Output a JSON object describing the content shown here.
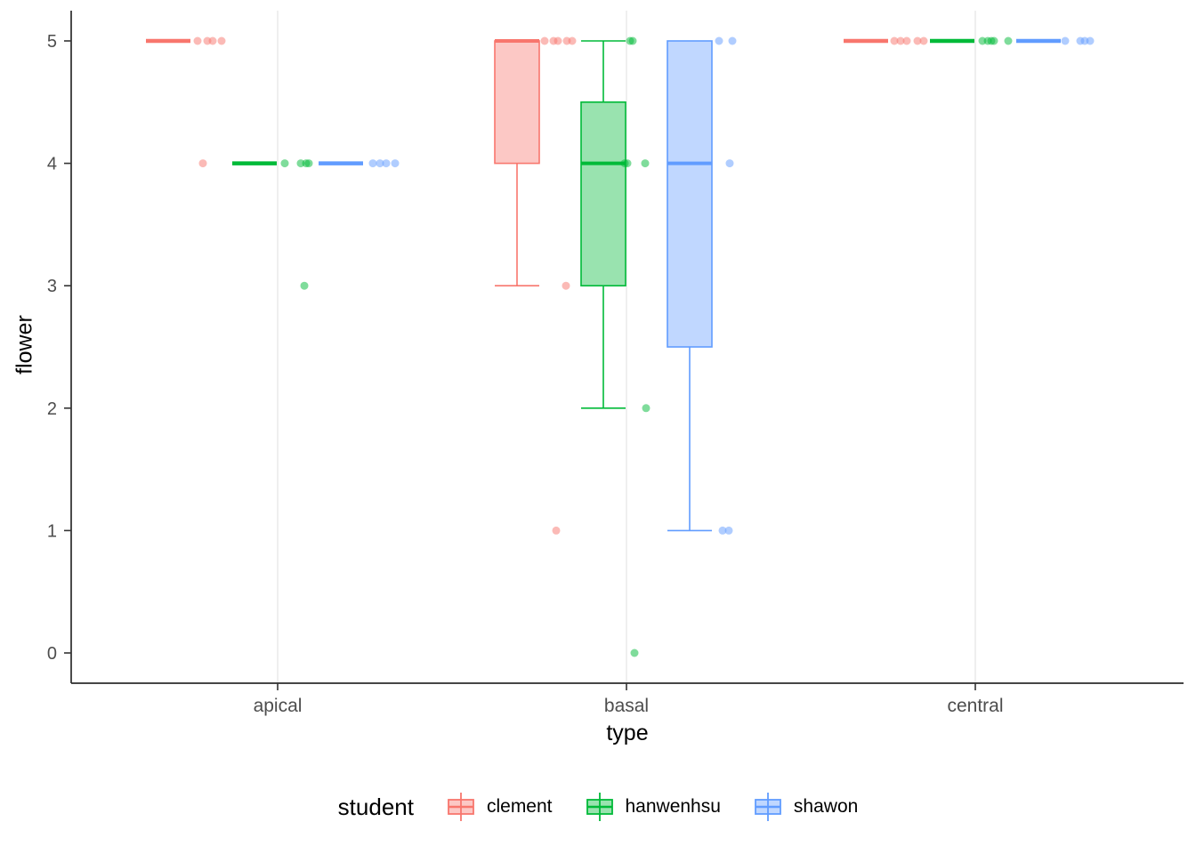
{
  "chart_data": {
    "type": "boxplot",
    "title": "",
    "xlabel": "type",
    "ylabel": "flower",
    "legend_title": "student",
    "categories": [
      "apical",
      "basal",
      "central"
    ],
    "groups": [
      {
        "name": "clement",
        "color": "#F8766D"
      },
      {
        "name": "hanwenhsu",
        "color": "#00BA38"
      },
      {
        "name": "shawon",
        "color": "#619CFF"
      }
    ],
    "ylim": [
      0,
      5
    ],
    "yticks": [
      0,
      1,
      2,
      3,
      4,
      5
    ],
    "layout_hints": {
      "legend_position": "bottom",
      "grid": "light vertical gridlines at each category",
      "background": "white",
      "box_fill_opacity": 0.4,
      "point_opacity": 0.5
    },
    "boxes": [
      {
        "c": "apical",
        "g": "clement",
        "min": 5,
        "q1": 5,
        "median": 5,
        "q3": 5,
        "max": 5
      },
      {
        "c": "apical",
        "g": "hanwenhsu",
        "min": 4,
        "q1": 4,
        "median": 4,
        "q3": 4,
        "max": 4
      },
      {
        "c": "apical",
        "g": "shawon",
        "min": 4,
        "q1": 4,
        "median": 4,
        "q3": 4,
        "max": 4
      },
      {
        "c": "basal",
        "g": "clement",
        "min": 3,
        "q1": 4,
        "median": 5,
        "q3": 5,
        "max": 5
      },
      {
        "c": "basal",
        "g": "hanwenhsu",
        "min": 2,
        "q1": 3,
        "median": 4,
        "q3": 4.5,
        "max": 5
      },
      {
        "c": "basal",
        "g": "shawon",
        "min": 1,
        "q1": 2.5,
        "median": 4,
        "q3": 5,
        "max": 5
      },
      {
        "c": "central",
        "g": "clement",
        "min": 5,
        "q1": 5,
        "median": 5,
        "q3": 5,
        "max": 5
      },
      {
        "c": "central",
        "g": "hanwenhsu",
        "min": 5,
        "q1": 5,
        "median": 5,
        "q3": 5,
        "max": 5
      },
      {
        "c": "central",
        "g": "shawon",
        "min": 5,
        "q1": 5,
        "median": 5,
        "q3": 5,
        "max": 5
      }
    ],
    "points": [
      {
        "c": "apical",
        "g": "clement",
        "y": 5,
        "dx": 33
      },
      {
        "c": "apical",
        "g": "clement",
        "y": 5,
        "dx": 44
      },
      {
        "c": "apical",
        "g": "clement",
        "y": 5,
        "dx": 50
      },
      {
        "c": "apical",
        "g": "clement",
        "y": 5,
        "dx": 60
      },
      {
        "c": "apical",
        "g": "clement",
        "y": 4,
        "dx": 39
      },
      {
        "c": "apical",
        "g": "hanwenhsu",
        "y": 4,
        "dx": 34
      },
      {
        "c": "apical",
        "g": "hanwenhsu",
        "y": 4,
        "dx": 52
      },
      {
        "c": "apical",
        "g": "hanwenhsu",
        "y": 4,
        "dx": 58
      },
      {
        "c": "apical",
        "g": "hanwenhsu",
        "y": 4,
        "dx": 61
      },
      {
        "c": "apical",
        "g": "hanwenhsu",
        "y": 3,
        "dx": 56
      },
      {
        "c": "apical",
        "g": "shawon",
        "y": 4,
        "dx": 36
      },
      {
        "c": "apical",
        "g": "shawon",
        "y": 4,
        "dx": 44
      },
      {
        "c": "apical",
        "g": "shawon",
        "y": 4,
        "dx": 51
      },
      {
        "c": "apical",
        "g": "shawon",
        "y": 4,
        "dx": 61
      },
      {
        "c": "basal",
        "g": "clement",
        "y": 5,
        "dx": 31
      },
      {
        "c": "basal",
        "g": "clement",
        "y": 5,
        "dx": 41
      },
      {
        "c": "basal",
        "g": "clement",
        "y": 5,
        "dx": 46
      },
      {
        "c": "basal",
        "g": "clement",
        "y": 5,
        "dx": 56
      },
      {
        "c": "basal",
        "g": "clement",
        "y": 5,
        "dx": 62
      },
      {
        "c": "basal",
        "g": "clement",
        "y": 3,
        "dx": 55
      },
      {
        "c": "basal",
        "g": "clement",
        "y": 1,
        "dx": 44
      },
      {
        "c": "basal",
        "g": "hanwenhsu",
        "y": 5,
        "dx": 30
      },
      {
        "c": "basal",
        "g": "hanwenhsu",
        "y": 5,
        "dx": 33
      },
      {
        "c": "basal",
        "g": "hanwenhsu",
        "y": 4,
        "dx": 24
      },
      {
        "c": "basal",
        "g": "hanwenhsu",
        "y": 4,
        "dx": 27
      },
      {
        "c": "basal",
        "g": "hanwenhsu",
        "y": 4,
        "dx": 47
      },
      {
        "c": "basal",
        "g": "hanwenhsu",
        "y": 2,
        "dx": 48
      },
      {
        "c": "basal",
        "g": "hanwenhsu",
        "y": 0,
        "dx": 35
      },
      {
        "c": "basal",
        "g": "shawon",
        "y": 5,
        "dx": 33
      },
      {
        "c": "basal",
        "g": "shawon",
        "y": 5,
        "dx": 48
      },
      {
        "c": "basal",
        "g": "shawon",
        "y": 4,
        "dx": 45
      },
      {
        "c": "basal",
        "g": "shawon",
        "y": 1,
        "dx": 37
      },
      {
        "c": "basal",
        "g": "shawon",
        "y": 1,
        "dx": 44
      },
      {
        "c": "central",
        "g": "clement",
        "y": 5,
        "dx": 32
      },
      {
        "c": "central",
        "g": "clement",
        "y": 5,
        "dx": 39
      },
      {
        "c": "central",
        "g": "clement",
        "y": 5,
        "dx": 46
      },
      {
        "c": "central",
        "g": "clement",
        "y": 5,
        "dx": 58
      },
      {
        "c": "central",
        "g": "clement",
        "y": 5,
        "dx": 65
      },
      {
        "c": "central",
        "g": "hanwenhsu",
        "y": 5,
        "dx": 34
      },
      {
        "c": "central",
        "g": "hanwenhsu",
        "y": 5,
        "dx": 40
      },
      {
        "c": "central",
        "g": "hanwenhsu",
        "y": 5,
        "dx": 44
      },
      {
        "c": "central",
        "g": "hanwenhsu",
        "y": 5,
        "dx": 47
      },
      {
        "c": "central",
        "g": "hanwenhsu",
        "y": 5,
        "dx": 63
      },
      {
        "c": "central",
        "g": "shawon",
        "y": 5,
        "dx": 30
      },
      {
        "c": "central",
        "g": "shawon",
        "y": 5,
        "dx": 47
      },
      {
        "c": "central",
        "g": "shawon",
        "y": 5,
        "dx": 52
      },
      {
        "c": "central",
        "g": "shawon",
        "y": 5,
        "dx": 58
      }
    ]
  }
}
